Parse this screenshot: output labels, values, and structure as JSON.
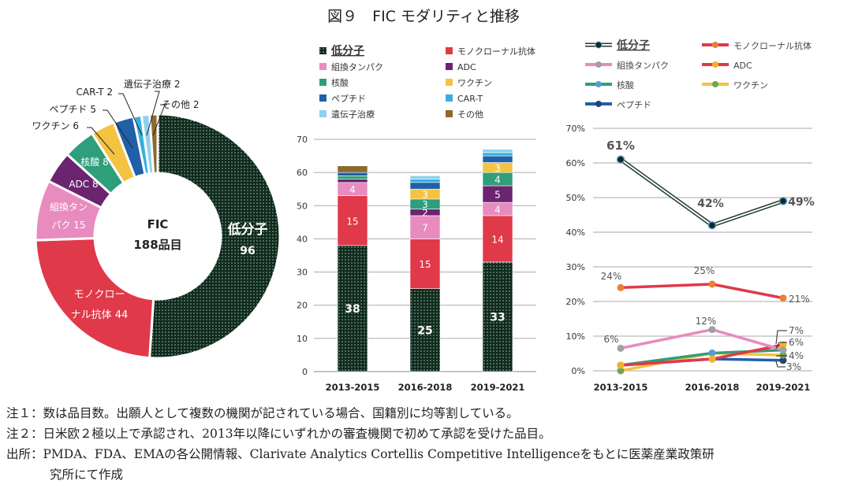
{
  "title": "図９　FIC モダリティと推移",
  "categories_names": [
    "低分子",
    "モノクローナル抗体",
    "組換タンパク",
    "ADC",
    "核酸",
    "ワクチン",
    "ペプチド",
    "CAR-T",
    "遺伝子治療",
    "その他"
  ],
  "colors": [
    "#0f2b1d",
    "#e0394a",
    "#e88bbf",
    "#6b2470",
    "#2f9e7a",
    "#f5c342",
    "#2160a8",
    "#3aaee0",
    "#8dd0ef",
    "#8a6a2e"
  ],
  "chart_data": [
    {
      "type": "pie",
      "variant": "donut",
      "center_label": [
        "FIC",
        "188品目"
      ],
      "labels": [
        "低分子",
        "モノクローナル抗体",
        "組換タンパク",
        "ADC",
        "核酸",
        "ワクチン",
        "ペプチド",
        "CAR-T",
        "遺伝子治療",
        "その他"
      ],
      "values": [
        96,
        44,
        15,
        8,
        8,
        6,
        5,
        2,
        2,
        2
      ],
      "slice_labels": [
        [
          "低分子",
          "96"
        ],
        [
          "モノクロー",
          "ナル抗体 44"
        ],
        [
          "組換タン",
          "パク 15"
        ],
        [
          "ADC 8"
        ],
        [
          "核酸 8"
        ],
        [
          "ワクチン 6"
        ],
        [
          "ペプチド 5"
        ],
        [
          "CAR-T 2"
        ],
        [
          "遺伝子治療 2"
        ],
        [
          "その他 2"
        ]
      ]
    },
    {
      "type": "bar",
      "stacked": true,
      "categories": [
        "2013-2015",
        "2016-2018",
        "2019-2021"
      ],
      "ylim": [
        0,
        70
      ],
      "yticks": [
        "0",
        "10",
        "20",
        "30",
        "40",
        "50",
        "60",
        "70"
      ],
      "grid": true,
      "legend": "top",
      "series": [
        {
          "name": "低分子",
          "values": [
            38,
            25,
            33
          ]
        },
        {
          "name": "モノクローナル抗体",
          "values": [
            15,
            15,
            14
          ]
        },
        {
          "name": "組換タンパク",
          "values": [
            4,
            7,
            4
          ]
        },
        {
          "name": "ADC",
          "values": [
            1,
            2,
            5
          ]
        },
        {
          "name": "核酸",
          "values": [
            1,
            3,
            4
          ]
        },
        {
          "name": "ワクチン",
          "values": [
            0,
            3,
            3
          ]
        },
        {
          "name": "ペプチド",
          "values": [
            1,
            2,
            2
          ]
        },
        {
          "name": "CAR-T",
          "values": [
            0,
            1,
            1
          ]
        },
        {
          "name": "遺伝子治療",
          "values": [
            0,
            1,
            1
          ]
        },
        {
          "name": "その他",
          "values": [
            2,
            0,
            0
          ]
        }
      ],
      "data_labels": [
        [
          "38",
          "15",
          "4"
        ],
        [
          "25",
          "15",
          "7",
          "2",
          "3",
          "3"
        ],
        [
          "33",
          "14",
          "4",
          "5",
          "4",
          "3"
        ]
      ]
    },
    {
      "type": "line",
      "categories": [
        "2013-2015",
        "2016-2018",
        "2019-2021"
      ],
      "ylim": [
        0,
        70
      ],
      "yticks": [
        "0%",
        "10%",
        "20%",
        "30%",
        "40%",
        "50%",
        "60%",
        "70%"
      ],
      "grid": true,
      "legend": "top",
      "series": [
        {
          "name": "低分子",
          "values": [
            61,
            42,
            49
          ],
          "line": "#1d3b2b",
          "marker": "#0f2b1d"
        },
        {
          "name": "モノクローナル抗体",
          "values": [
            24,
            25,
            21
          ],
          "line": "#e0394a",
          "marker": "#e8803a"
        },
        {
          "name": "組換タンパク",
          "values": [
            6.5,
            11.9,
            6
          ],
          "line": "#e88bbf",
          "marker": "#a0a0a0"
        },
        {
          "name": "ADC",
          "values": [
            1.6,
            3.4,
            7.5
          ],
          "line": "#e0394a",
          "marker": "#f5b02a"
        },
        {
          "name": "核酸",
          "values": [
            1.6,
            5.1,
            6
          ],
          "line": "#2f9e7a",
          "marker": "#5b9bd5"
        },
        {
          "name": "ワクチン",
          "values": [
            0,
            5.1,
            4.5
          ],
          "line": "#f5c342",
          "marker": "#6aa84f"
        },
        {
          "name": "ペプチド",
          "values": [
            1.6,
            3.4,
            3
          ],
          "line": "#2160a8",
          "marker": "#2a3f7a"
        }
      ],
      "data_labels": [
        "61%",
        "42%",
        "49%",
        "24%",
        "25%",
        "21%",
        "6%",
        "12%",
        "7%",
        "6%",
        "4%",
        "3%"
      ]
    }
  ],
  "notes": [
    "注１：数は品目数。出願人として複数の機関が記されている場合、国籍別に均等割している。",
    "注２：日米欧２極以上で承認され、2013年以降にいずれかの審査機関で初めて承認を受けた品目。",
    "出所：PMDA、FDA、EMAの各公開情報、Clarivate Analytics Cortellis Competitive Intelligenceをもとに医薬産業政策研",
    "究所にて作成"
  ]
}
